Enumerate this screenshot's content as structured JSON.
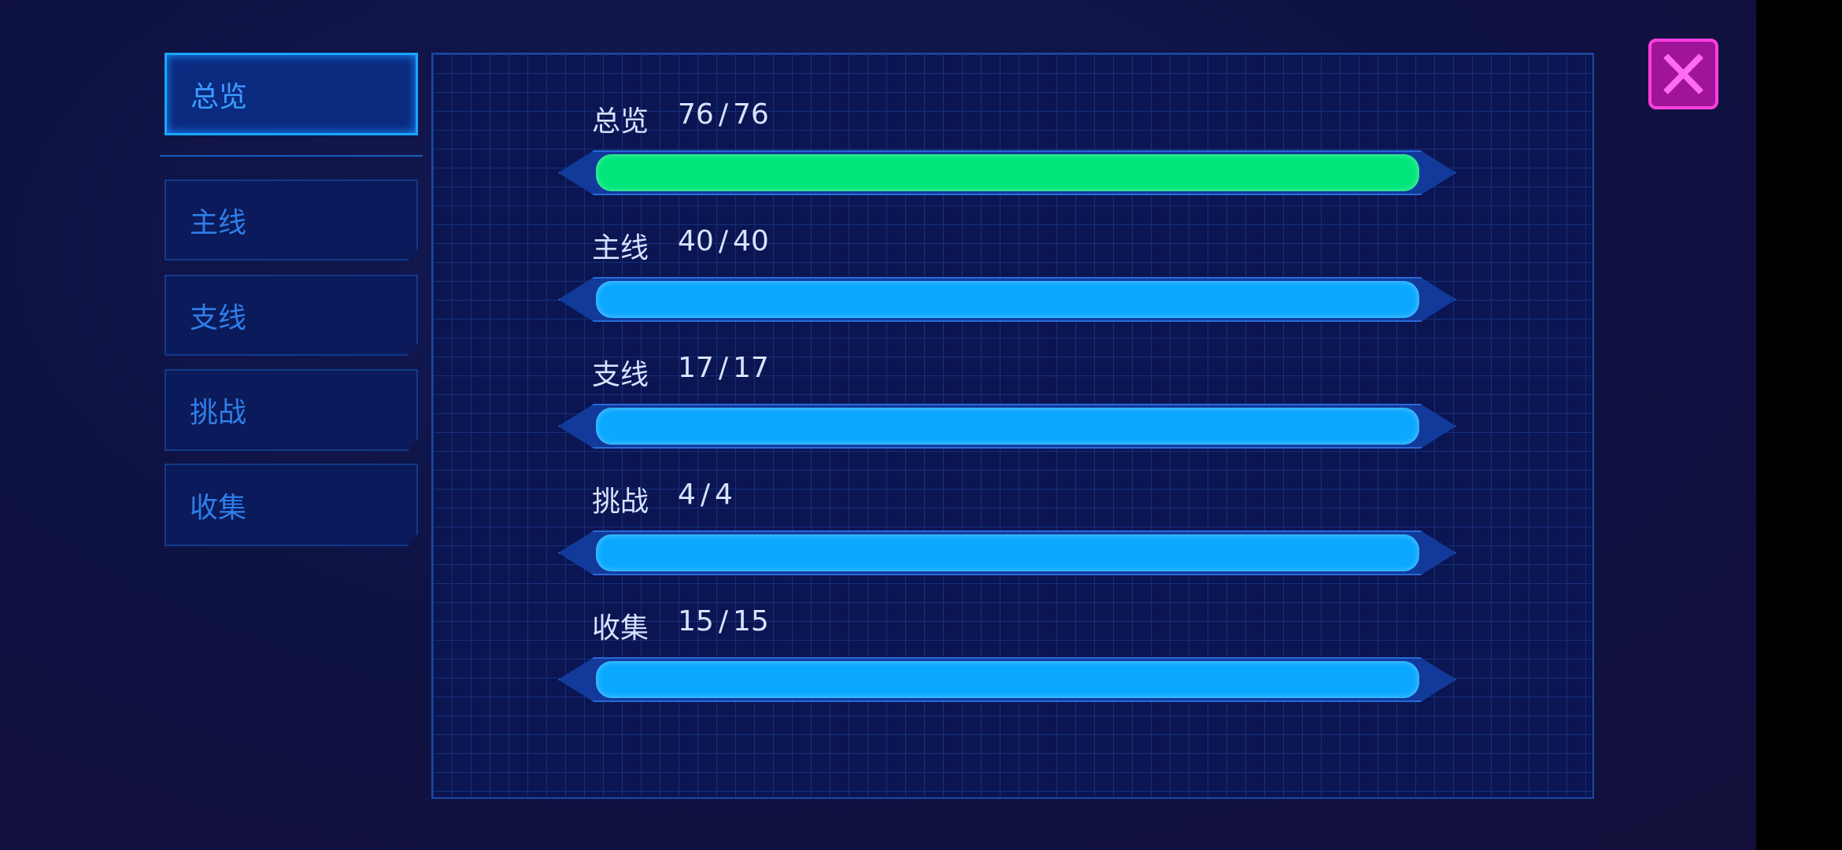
{
  "tabs": [
    "总览",
    "主线",
    "支线",
    "挑战",
    "收集"
  ],
  "active_tab": 0,
  "progress": {
    "separator": "/",
    "rows": [
      {
        "label": "总览",
        "done": 76,
        "total": 76,
        "color": "#00e67a"
      },
      {
        "label": "主线",
        "done": 40,
        "total": 40,
        "color": "#0aa8ff"
      },
      {
        "label": "支线",
        "done": 17,
        "total": 17,
        "color": "#0aa8ff"
      },
      {
        "label": "挑战",
        "done": 4,
        "total": 4,
        "color": "#0aa8ff"
      },
      {
        "label": "收集",
        "done": 15,
        "total": 15,
        "color": "#0aa8ff"
      }
    ]
  }
}
